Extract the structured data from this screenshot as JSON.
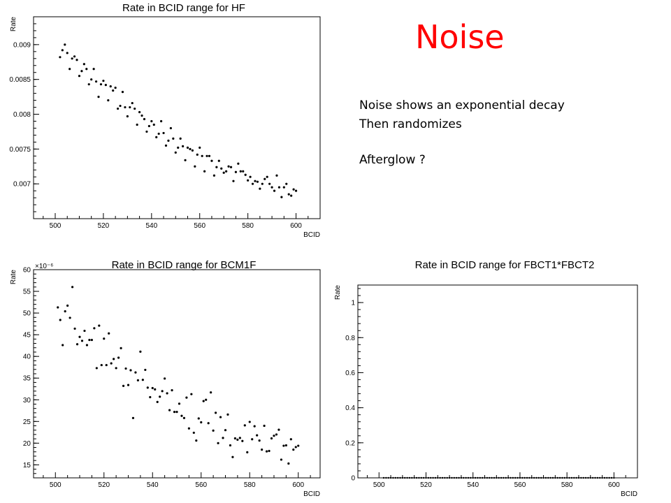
{
  "slide": {
    "title": "Noise",
    "notes": [
      "Noise shows an exponential decay",
      "Then randomizes",
      "Afterglow ?"
    ]
  },
  "chart_data": [
    {
      "id": "hf",
      "type": "scatter",
      "title": "Rate in BCID range for HF",
      "xlabel": "BCID",
      "ylabel": "Rate",
      "xlim": [
        491,
        610
      ],
      "ylim": [
        0.0065,
        0.0094
      ],
      "xticks": [
        "500",
        "520",
        "540",
        "560",
        "580",
        "600"
      ],
      "yticks": [
        "0.007",
        "0.0075",
        "0.008",
        "0.0085",
        "0.009"
      ],
      "grid": false,
      "series": [
        {
          "x": [
            502,
            503,
            504,
            505,
            506,
            507,
            508,
            509,
            510,
            511,
            512,
            513,
            514,
            515,
            516,
            517,
            518,
            519,
            520,
            521,
            522,
            523,
            524,
            525,
            526,
            527,
            528,
            529,
            530,
            531,
            532,
            533,
            534,
            535,
            536,
            537,
            538,
            539,
            540,
            541,
            542,
            543,
            544,
            545,
            546,
            547,
            548,
            549,
            550,
            551,
            552,
            553,
            554,
            555,
            556,
            557,
            558,
            559,
            560,
            561,
            562,
            563,
            564,
            565,
            566,
            567,
            568,
            569,
            570,
            571,
            572,
            573,
            574,
            575,
            576,
            577,
            578,
            579,
            580,
            581,
            582,
            583,
            584,
            585,
            586,
            587,
            588,
            589,
            590,
            591,
            592,
            593,
            594,
            595,
            596,
            597,
            598,
            599,
            600
          ],
          "y": [
            0.00882,
            0.00892,
            0.009,
            0.00888,
            0.00865,
            0.0088,
            0.00883,
            0.00878,
            0.00855,
            0.00862,
            0.00872,
            0.00865,
            0.00843,
            0.0085,
            0.00865,
            0.00847,
            0.00825,
            0.00843,
            0.00848,
            0.00842,
            0.0082,
            0.0084,
            0.00834,
            0.00838,
            0.00808,
            0.00812,
            0.00832,
            0.0081,
            0.00797,
            0.0081,
            0.00816,
            0.00808,
            0.00785,
            0.00803,
            0.00798,
            0.00793,
            0.00775,
            0.00783,
            0.0079,
            0.00785,
            0.00767,
            0.00772,
            0.0079,
            0.00773,
            0.00755,
            0.00762,
            0.0078,
            0.00765,
            0.00745,
            0.00752,
            0.00765,
            0.00754,
            0.00734,
            0.00752,
            0.0075,
            0.00748,
            0.00725,
            0.00742,
            0.00752,
            0.0074,
            0.00718,
            0.0074,
            0.0074,
            0.00733,
            0.00712,
            0.00724,
            0.00733,
            0.00722,
            0.00716,
            0.00718,
            0.00725,
            0.00724,
            0.00704,
            0.00717,
            0.00729,
            0.00718,
            0.00718,
            0.00713,
            0.00705,
            0.0071,
            0.007,
            0.00704,
            0.00703,
            0.00693,
            0.007,
            0.00707,
            0.0071,
            0.007,
            0.00695,
            0.0069,
            0.00712,
            0.00695,
            0.00681,
            0.00695,
            0.007,
            0.00685,
            0.00683,
            0.00692,
            0.0069
          ]
        }
      ]
    },
    {
      "id": "bcm1f",
      "type": "scatter",
      "title": "Rate in BCID range for BCM1F",
      "xlabel": "BCID",
      "ylabel": "Rate",
      "exponent_label": "×10⁻⁶",
      "xlim": [
        491,
        609
      ],
      "ylim": [
        12,
        60
      ],
      "xticks": [
        "500",
        "520",
        "540",
        "560",
        "580",
        "600"
      ],
      "yticks": [
        "15",
        "20",
        "25",
        "30",
        "35",
        "40",
        "45",
        "50",
        "55",
        "60"
      ],
      "grid": false,
      "series": [
        {
          "x": [
            501,
            502,
            503,
            504,
            505,
            506,
            507,
            508,
            509,
            510,
            511,
            512,
            513,
            514,
            515,
            516,
            517,
            518,
            519,
            520,
            521,
            522,
            523,
            524,
            525,
            526,
            527,
            528,
            529,
            530,
            531,
            532,
            533,
            534,
            535,
            536,
            537,
            538,
            539,
            540,
            541,
            542,
            543,
            544,
            545,
            546,
            547,
            548,
            549,
            550,
            551,
            552,
            553,
            554,
            555,
            556,
            557,
            558,
            559,
            560,
            561,
            562,
            563,
            564,
            565,
            566,
            567,
            568,
            569,
            570,
            571,
            572,
            573,
            574,
            575,
            576,
            577,
            578,
            579,
            580,
            581,
            582,
            583,
            584,
            585,
            586,
            587,
            588,
            589,
            590,
            591,
            592,
            593,
            594,
            595,
            596,
            597,
            598,
            599,
            600
          ],
          "y": [
            51.3,
            48.4,
            42.6,
            50.4,
            51.7,
            48.9,
            56.0,
            46.4,
            42.8,
            44.5,
            43.6,
            45.9,
            42.6,
            43.8,
            43.8,
            46.5,
            37.3,
            47.1,
            38.0,
            44.1,
            38.0,
            45.3,
            38.4,
            39.4,
            37.3,
            39.7,
            41.9,
            33.2,
            37.2,
            33.4,
            36.8,
            25.8,
            36.3,
            34.5,
            41.1,
            34.6,
            36.9,
            32.8,
            30.6,
            32.7,
            32.4,
            29.5,
            30.7,
            32.0,
            34.9,
            31.5,
            27.6,
            32.2,
            27.2,
            27.2,
            29.1,
            26.3,
            25.8,
            30.5,
            23.4,
            31.3,
            22.4,
            20.6,
            25.7,
            24.8,
            29.7,
            30.0,
            24.6,
            31.7,
            22.9,
            27.0,
            20.0,
            26.0,
            21.2,
            23.0,
            26.6,
            19.5,
            16.8,
            21.1,
            20.8,
            21.2,
            20.5,
            24.1,
            17.9,
            24.9,
            20.9,
            23.9,
            21.8,
            20.6,
            18.5,
            24.0,
            18.1,
            18.2,
            21.1,
            21.7,
            22.0,
            23.1,
            16.2,
            19.4,
            19.5,
            15.3,
            20.9,
            18.5,
            19.1,
            19.4
          ]
        }
      ]
    },
    {
      "id": "fbct",
      "type": "scatter",
      "title": "Rate in BCID range for FBCT1*FBCT2",
      "xlabel": "BCID",
      "ylabel": "Rate",
      "xlim": [
        491,
        610
      ],
      "ylim": [
        0,
        1.1
      ],
      "xticks": [
        "500",
        "520",
        "540",
        "560",
        "580",
        "600"
      ],
      "yticks": [
        "0",
        "0.2",
        "0.4",
        "0.6",
        "0.8",
        "1"
      ],
      "grid": false,
      "series": [
        {
          "x_range": [
            502,
            600
          ],
          "constant_y": 0
        }
      ]
    }
  ]
}
